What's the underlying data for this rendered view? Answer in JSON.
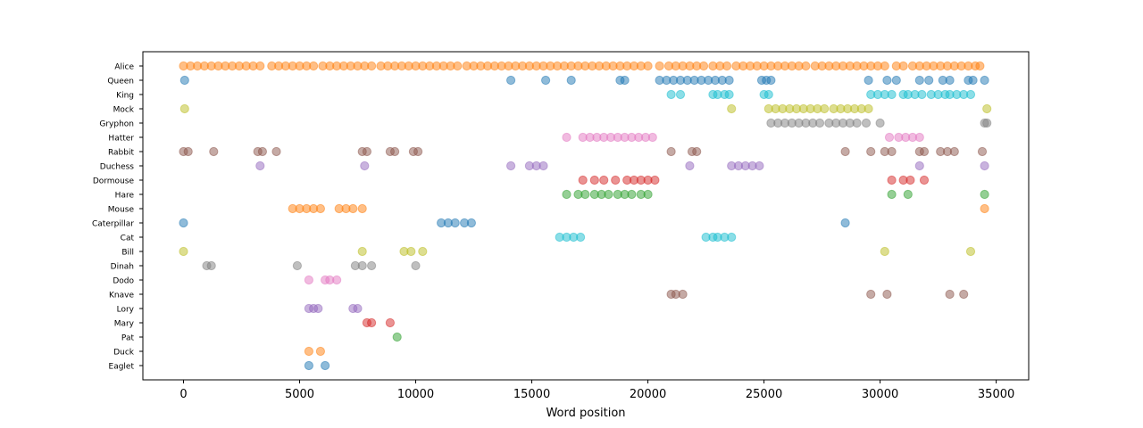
{
  "chart_data": {
    "type": "scatter",
    "title": "",
    "xlabel": "Word position",
    "ylabel": "",
    "xlim": [
      -1750,
      36400
    ],
    "x_ticks": [
      0,
      5000,
      10000,
      15000,
      20000,
      25000,
      30000,
      35000
    ],
    "grid": false,
    "marker_alpha": 0.5,
    "characters": [
      "Alice",
      "Queen",
      "King",
      "Mock",
      "Gryphon",
      "Hatter",
      "Rabbit",
      "Duchess",
      "Dormouse",
      "Hare",
      "Mouse",
      "Caterpillar",
      "Cat",
      "Bill",
      "Dinah",
      "Dodo",
      "Knave",
      "Lory",
      "Mary",
      "Pat",
      "Duck",
      "Eaglet"
    ],
    "series": [
      {
        "name": "Alice",
        "color": "#ff7f0e",
        "x": [
          0,
          300,
          600,
          900,
          1200,
          1500,
          1800,
          2100,
          2400,
          2700,
          3000,
          3300,
          3800,
          4100,
          4400,
          4700,
          5000,
          5300,
          5600,
          6000,
          6300,
          6600,
          6900,
          7200,
          7500,
          7800,
          8100,
          8500,
          8800,
          9100,
          9400,
          9700,
          10000,
          10300,
          10600,
          10900,
          11200,
          11500,
          11800,
          12200,
          12500,
          12800,
          13100,
          13400,
          13700,
          14000,
          14300,
          14600,
          14900,
          15200,
          15500,
          15800,
          16100,
          16400,
          16700,
          17000,
          17300,
          17600,
          17900,
          18200,
          18500,
          18800,
          19100,
          19400,
          19700,
          20000,
          20500,
          20900,
          21200,
          21500,
          21800,
          22100,
          22400,
          22800,
          23100,
          23400,
          23800,
          24100,
          24400,
          24700,
          25000,
          25300,
          25600,
          25900,
          26200,
          26500,
          26800,
          27200,
          27500,
          27800,
          28100,
          28400,
          28700,
          29000,
          29300,
          29600,
          29900,
          30200,
          30700,
          31000,
          31400,
          31700,
          32000,
          32300,
          32600,
          32900,
          33200,
          33500,
          33800,
          34100,
          34300
        ]
      },
      {
        "name": "Queen",
        "color": "#1f77b4",
        "x": [
          50,
          14100,
          15600,
          16700,
          18800,
          19000,
          20500,
          20800,
          21100,
          21400,
          21700,
          22000,
          22300,
          22600,
          22900,
          23200,
          23500,
          24900,
          25100,
          25300,
          29500,
          30300,
          30700,
          31700,
          32100,
          32700,
          33000,
          33800,
          34000,
          34500
        ]
      },
      {
        "name": "King",
        "color": "#17becf",
        "x": [
          21000,
          21400,
          22800,
          23000,
          23300,
          23500,
          25000,
          25200,
          29600,
          29900,
          30200,
          30500,
          31000,
          31200,
          31500,
          31800,
          32200,
          32500,
          32800,
          33000,
          33300,
          33600,
          33900
        ]
      },
      {
        "name": "Mock",
        "color": "#bcbd22",
        "x": [
          50,
          23600,
          25200,
          25500,
          25800,
          26100,
          26400,
          26700,
          27000,
          27300,
          27600,
          28000,
          28300,
          28600,
          28900,
          29200,
          29500,
          34600
        ]
      },
      {
        "name": "Gryphon",
        "color": "#7f7f7f",
        "x": [
          25300,
          25600,
          25900,
          26200,
          26500,
          26800,
          27100,
          27400,
          27800,
          28100,
          28400,
          28700,
          29000,
          29400,
          30000,
          34500,
          34600
        ]
      },
      {
        "name": "Hatter",
        "color": "#e377c2",
        "x": [
          16500,
          17200,
          17500,
          17800,
          18100,
          18400,
          18700,
          19000,
          19300,
          19600,
          19900,
          20200,
          30400,
          30800,
          31100,
          31400,
          31700
        ]
      },
      {
        "name": "Rabbit",
        "color": "#8c564b",
        "x": [
          0,
          200,
          1300,
          3200,
          3400,
          4000,
          7700,
          7900,
          8900,
          9100,
          9900,
          10100,
          21000,
          21900,
          22100,
          28500,
          29600,
          30200,
          30500,
          31700,
          31900,
          32600,
          32900,
          33200,
          34400
        ]
      },
      {
        "name": "Duchess",
        "color": "#9467bd",
        "x": [
          3300,
          7800,
          14100,
          14900,
          15200,
          15500,
          21800,
          23600,
          23900,
          24200,
          24500,
          24800,
          31700,
          34500
        ]
      },
      {
        "name": "Dormouse",
        "color": "#d62728",
        "x": [
          17200,
          17700,
          18100,
          18600,
          19100,
          19400,
          19700,
          20000,
          20300,
          30500,
          31000,
          31300,
          31900
        ]
      },
      {
        "name": "Hare",
        "color": "#2ca02c",
        "x": [
          16500,
          17000,
          17300,
          17700,
          18000,
          18300,
          18700,
          19000,
          19300,
          19700,
          20000,
          30500,
          31200,
          34500
        ]
      },
      {
        "name": "Mouse",
        "color": "#ff7f0e",
        "x": [
          4700,
          5000,
          5300,
          5600,
          5900,
          6700,
          7000,
          7300,
          7700,
          34500
        ]
      },
      {
        "name": "Caterpillar",
        "color": "#1f77b4",
        "x": [
          0,
          11100,
          11400,
          11700,
          12100,
          12400,
          28500
        ]
      },
      {
        "name": "Cat",
        "color": "#17becf",
        "x": [
          16200,
          16500,
          16800,
          17100,
          22500,
          22800,
          23000,
          23300,
          23600
        ]
      },
      {
        "name": "Bill",
        "color": "#bcbd22",
        "x": [
          0,
          7700,
          9500,
          9800,
          10300,
          30200,
          33900
        ]
      },
      {
        "name": "Dinah",
        "color": "#7f7f7f",
        "x": [
          1000,
          1200,
          4900,
          7400,
          7700,
          8100,
          10000
        ]
      },
      {
        "name": "Dodo",
        "color": "#e377c2",
        "x": [
          5400,
          6100,
          6300,
          6600
        ]
      },
      {
        "name": "Knave",
        "color": "#8c564b",
        "x": [
          21000,
          21200,
          21500,
          29600,
          30300,
          33000,
          33600
        ]
      },
      {
        "name": "Lory",
        "color": "#9467bd",
        "x": [
          5400,
          5600,
          5800,
          7300,
          7500
        ]
      },
      {
        "name": "Mary",
        "color": "#d62728",
        "x": [
          7900,
          8100,
          8900
        ]
      },
      {
        "name": "Pat",
        "color": "#2ca02c",
        "x": [
          9200
        ]
      },
      {
        "name": "Duck",
        "color": "#ff7f0e",
        "x": [
          5400,
          5900
        ]
      },
      {
        "name": "Eaglet",
        "color": "#1f77b4",
        "x": [
          5400,
          6100
        ]
      }
    ]
  }
}
